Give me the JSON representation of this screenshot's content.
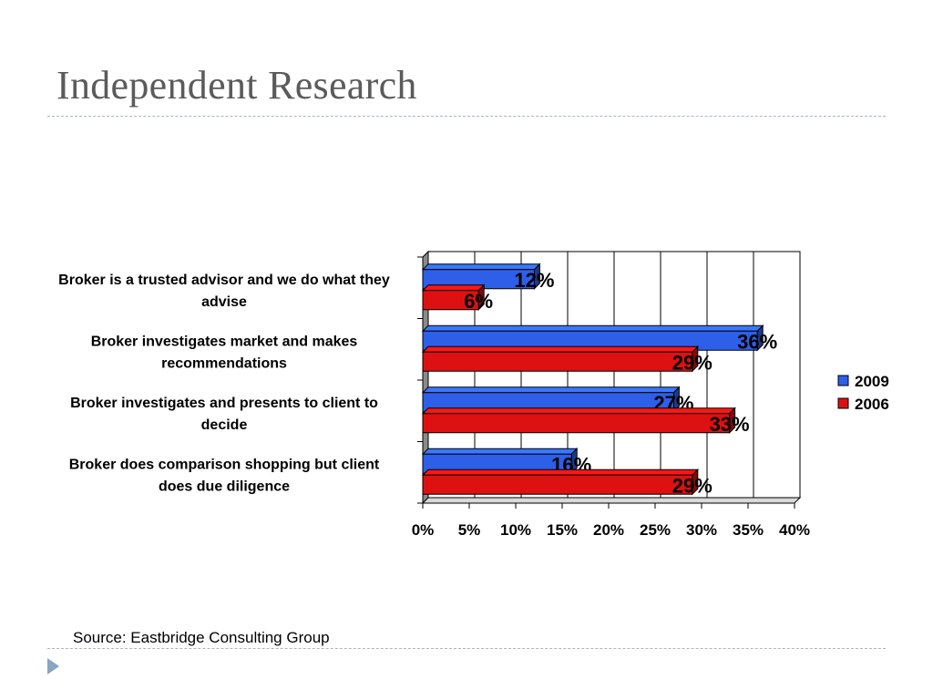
{
  "slide": {
    "title": "Independent Research",
    "source": "Source:  Eastbridge Consulting Group"
  },
  "colors": {
    "series_2009": "#2e5fe8",
    "series_2006": "#dd1111",
    "title": "#5b5b5b",
    "rule": "#a9b6c2"
  },
  "chart_data": {
    "type": "bar",
    "orientation": "horizontal",
    "style": "3d-clustered",
    "categories": [
      [
        "Broker is a trusted advisor and we do what they",
        "advise"
      ],
      [
        "Broker investigates market and makes",
        "recommendations"
      ],
      [
        "Broker investigates and presents to client to",
        "decide"
      ],
      [
        "Broker does comparison shopping but client",
        "does due diligence"
      ]
    ],
    "series": [
      {
        "name": "2009",
        "values": [
          12,
          36,
          27,
          16
        ],
        "labels": [
          "12%",
          "36%",
          "27%",
          "16%"
        ]
      },
      {
        "name": "2006",
        "values": [
          6,
          29,
          33,
          29
        ],
        "labels": [
          "6%",
          "29%",
          "33%",
          "29%"
        ]
      }
    ],
    "xlim": [
      0,
      40
    ],
    "xticks": [
      "0%",
      "5%",
      "10%",
      "15%",
      "20%",
      "25%",
      "30%",
      "35%",
      "40%"
    ],
    "grid": true,
    "legend": "right",
    "xlabel": "",
    "ylabel": ""
  }
}
